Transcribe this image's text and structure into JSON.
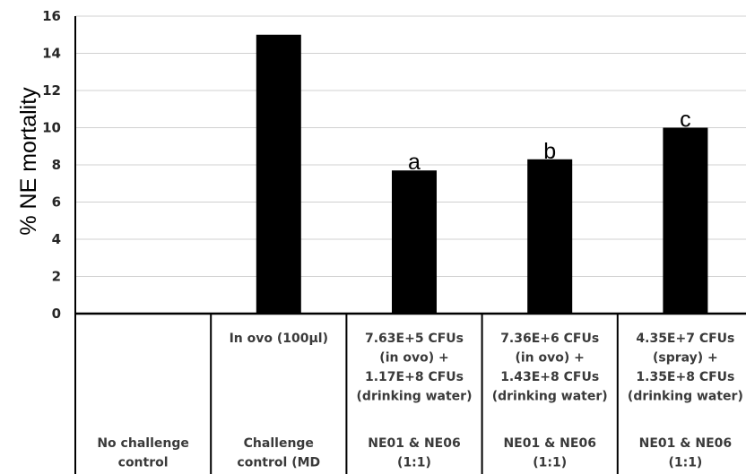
{
  "chart_data": {
    "type": "bar",
    "title": "",
    "ylabel": "% NE mortality",
    "ylim": [
      0,
      16
    ],
    "yticks": [
      0,
      2,
      4,
      6,
      8,
      10,
      12,
      14,
      16
    ],
    "grid": true,
    "categories": [
      {
        "treatment": [],
        "group": [
          "No challenge",
          "control"
        ]
      },
      {
        "treatment": [
          "In ovo (100µl)"
        ],
        "group": [
          "Challenge",
          "control (MD"
        ]
      },
      {
        "treatment": [
          "7.63E+5 CFUs",
          "(in ovo) +",
          "1.17E+8 CFUs",
          "(drinking water)"
        ],
        "group": [
          "NE01 & NE06",
          "(1:1)"
        ]
      },
      {
        "treatment": [
          "7.36E+6 CFUs",
          "(in ovo) +",
          "1.43E+8 CFUs",
          "(drinking water)"
        ],
        "group": [
          "NE01 & NE06",
          "(1:1)"
        ]
      },
      {
        "treatment": [
          "4.35E+7 CFUs",
          "(spray) +",
          "1.35E+8 CFUs",
          "(drinking water)"
        ],
        "group": [
          "NE01 & NE06",
          "(1:1)"
        ]
      }
    ],
    "values": [
      0,
      15,
      7.7,
      8.3,
      10
    ],
    "bar_labels": [
      "",
      "",
      "a",
      "b",
      "c"
    ],
    "bar_color": "#000000",
    "grid_color": "#d0d0d0"
  }
}
